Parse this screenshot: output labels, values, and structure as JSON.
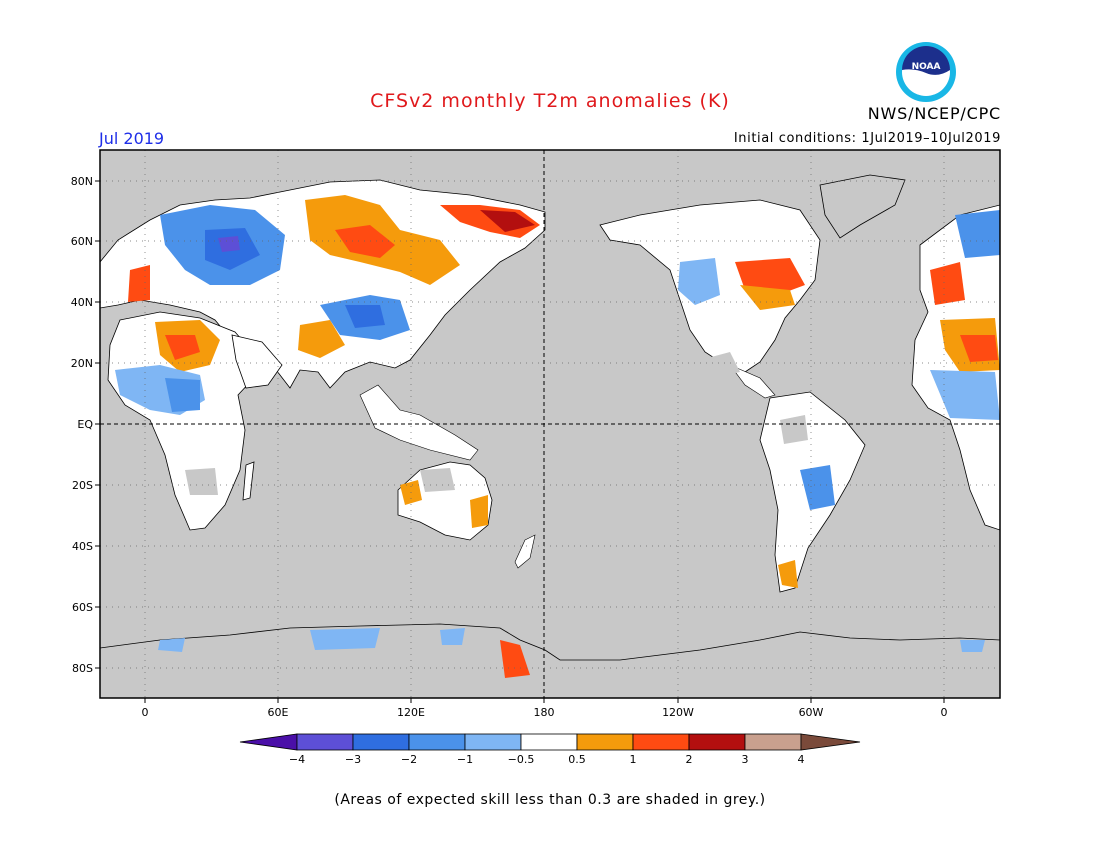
{
  "title": "CFSv2 monthly T2m anomalies (K)",
  "month": "Jul 2019",
  "initial_conditions": "Initial conditions: 1Jul2019–10Jul2019",
  "agency": "NWS/NCEP/CPC",
  "logo_text": "NOAA",
  "footnote": "(Areas of expected skill less than 0.3 are shaded in grey.)",
  "lat_labels": [
    "80N",
    "60N",
    "40N",
    "20N",
    "EQ",
    "20S",
    "40S",
    "60S",
    "80S"
  ],
  "lon_labels": [
    "0",
    "60E",
    "120E",
    "180",
    "120W",
    "60W",
    "0"
  ],
  "colorbar": {
    "labels": [
      "−4",
      "−3",
      "−2",
      "−1",
      "−0.5",
      "0.5",
      "1",
      "2",
      "3",
      "4"
    ],
    "colors": [
      "#4a0fa8",
      "#5d4fd6",
      "#2f6ee0",
      "#4b92ea",
      "#7fb6f4",
      "#ffffff",
      "#f59b0c",
      "#ff4b12",
      "#b30f0f",
      "#c9a08e",
      "#7a4a3a"
    ]
  },
  "colors": {
    "ocean_grey": "#c8c8c8",
    "land_white": "#ffffff",
    "title_red": "#e0191c",
    "month_blue": "#1e2ee8"
  }
}
